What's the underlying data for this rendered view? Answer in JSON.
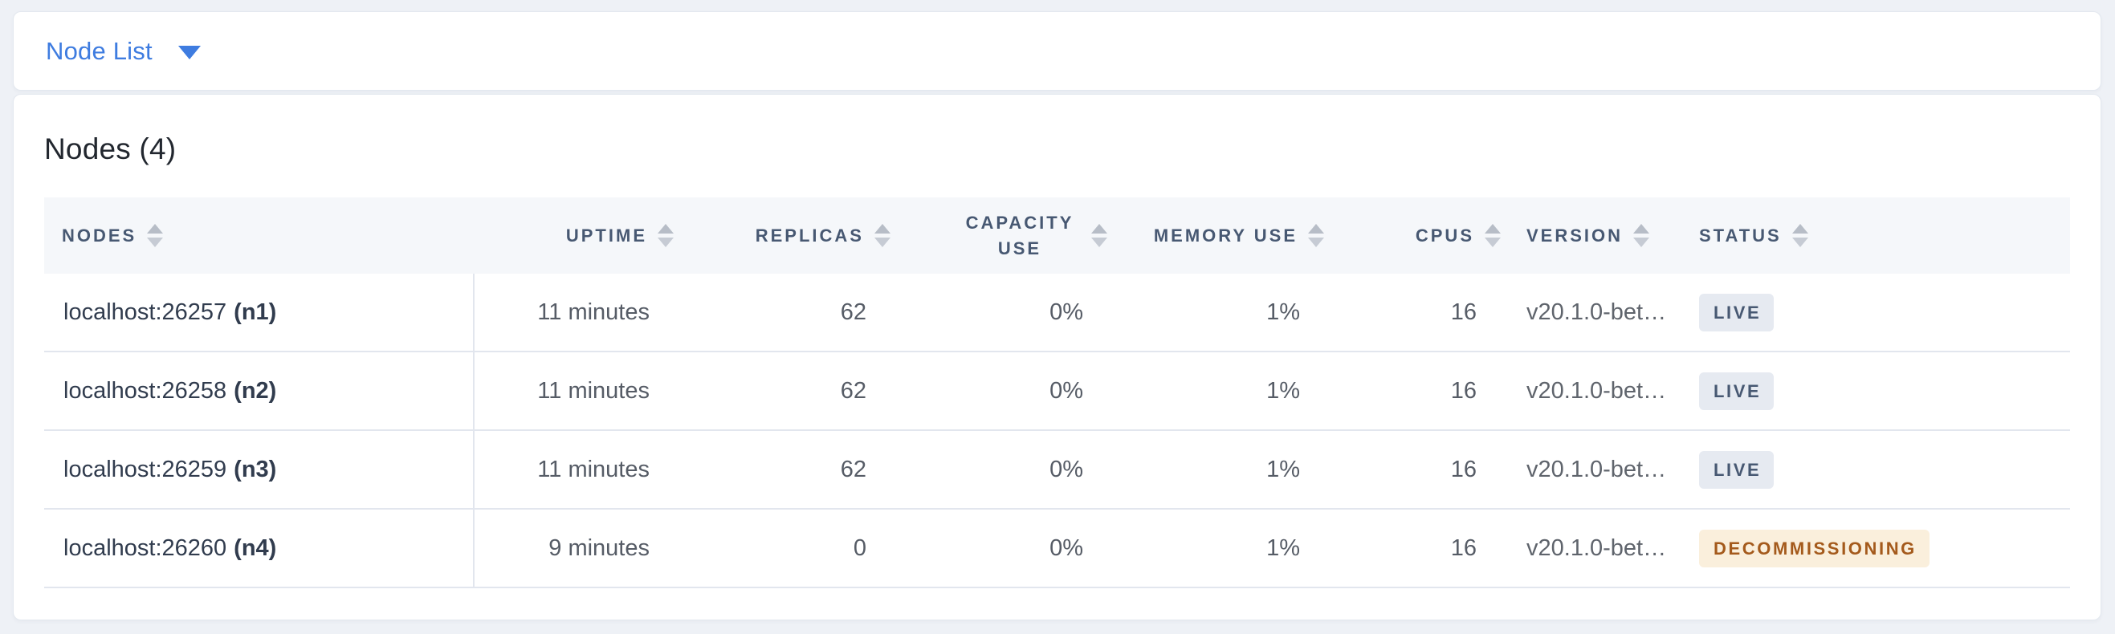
{
  "toolbar": {
    "dropdown_label": "Node List"
  },
  "panel": {
    "title": "Nodes (4)"
  },
  "table": {
    "columns": [
      {
        "label": "NODES",
        "align": "left",
        "sortable": true
      },
      {
        "label": "UPTIME",
        "align": "right",
        "sortable": true
      },
      {
        "label": "REPLICAS",
        "align": "right",
        "sortable": true
      },
      {
        "label": "CAPACITY USE",
        "align": "right",
        "sortable": true,
        "wrap": true
      },
      {
        "label": "MEMORY USE",
        "align": "right",
        "sortable": true
      },
      {
        "label": "CPUS",
        "align": "right",
        "sortable": true
      },
      {
        "label": "VERSION",
        "align": "left",
        "sortable": true
      },
      {
        "label": "STATUS",
        "align": "left",
        "sortable": true
      }
    ],
    "rows": [
      {
        "address": "localhost:26257",
        "node_id": "(n1)",
        "uptime": "11 minutes",
        "replicas": "62",
        "capacity_use": "0%",
        "memory_use": "1%",
        "cpus": "16",
        "version": "v20.1.0-bet…",
        "status": "LIVE",
        "status_type": "live"
      },
      {
        "address": "localhost:26258",
        "node_id": "(n2)",
        "uptime": "11 minutes",
        "replicas": "62",
        "capacity_use": "0%",
        "memory_use": "1%",
        "cpus": "16",
        "version": "v20.1.0-bet…",
        "status": "LIVE",
        "status_type": "live"
      },
      {
        "address": "localhost:26259",
        "node_id": "(n3)",
        "uptime": "11 minutes",
        "replicas": "62",
        "capacity_use": "0%",
        "memory_use": "1%",
        "cpus": "16",
        "version": "v20.1.0-bet…",
        "status": "LIVE",
        "status_type": "live"
      },
      {
        "address": "localhost:26260",
        "node_id": "(n4)",
        "uptime": "9 minutes",
        "replicas": "0",
        "capacity_use": "0%",
        "memory_use": "1%",
        "cpus": "16",
        "version": "v20.1.0-bet…",
        "status": "DECOMMISSIONING",
        "status_type": "decommissioning"
      }
    ]
  },
  "colors": {
    "accent": "#3e7ce0",
    "page_background": "#eef1f6",
    "header_band": "#f5f7fa",
    "status_live_bg": "#e6eaf1",
    "status_live_text": "#475872",
    "status_decommissioning_bg": "#faefdc",
    "status_decommissioning_text": "#a45a1c"
  }
}
